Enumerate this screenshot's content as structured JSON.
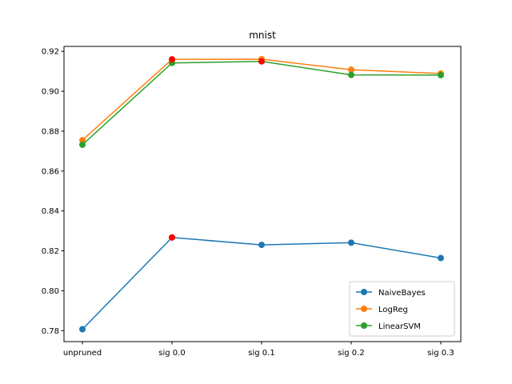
{
  "chart_data": {
    "type": "line",
    "title": "mnist",
    "xlabel": "",
    "ylabel": "",
    "categories": [
      "unpruned",
      "sig 0.0",
      "sig 0.1",
      "sig 0.2",
      "sig 0.3"
    ],
    "ylim": [
      0.7745,
      0.9225
    ],
    "yticks": [
      0.78,
      0.8,
      0.82,
      0.84,
      0.86,
      0.88,
      0.9,
      0.92
    ],
    "ytick_labels": [
      "0.78",
      "0.80",
      "0.82",
      "0.84",
      "0.86",
      "0.88",
      "0.90",
      "0.92"
    ],
    "grid": false,
    "legend_position": "lower-right",
    "highlight_color": "#ff0000",
    "series": [
      {
        "name": "NaiveBayes",
        "color": "#1f77b4",
        "values": [
          0.7807,
          0.8267,
          0.823,
          0.8241,
          0.8164
        ],
        "highlight_index": 1
      },
      {
        "name": "LogReg",
        "color": "#ff7f0e",
        "values": [
          0.8755,
          0.916,
          0.9161,
          0.9108,
          0.9089
        ],
        "highlight_index": 1
      },
      {
        "name": "LinearSVM",
        "color": "#2ca02c",
        "values": [
          0.8732,
          0.9142,
          0.915,
          0.9082,
          0.9081
        ],
        "highlight_index": 2
      }
    ]
  }
}
